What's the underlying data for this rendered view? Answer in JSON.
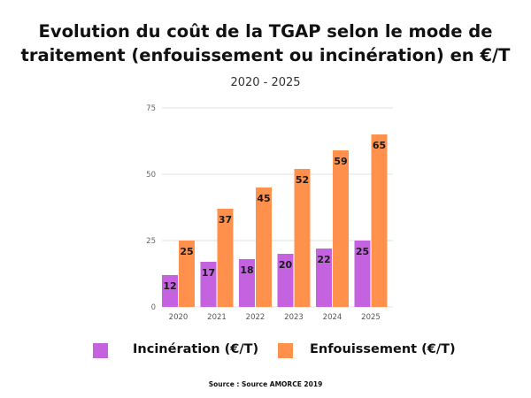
{
  "chart_data": {
    "type": "bar",
    "title": "Evolution du coût de la TGAP selon le mode de traitement (enfouissement ou incinération) en €/T",
    "subtitle": "2020 - 2025",
    "categories": [
      "2020",
      "2021",
      "2022",
      "2023",
      "2024",
      "2025"
    ],
    "series": [
      {
        "name": "Incinération (€/T)",
        "color": "#C462E0",
        "values": [
          12,
          17,
          18,
          20,
          22,
          25
        ]
      },
      {
        "name": "Enfouissement (€/T)",
        "color": "#FF914D",
        "values": [
          25,
          37,
          45,
          52,
          59,
          65
        ]
      }
    ],
    "ylim": [
      0,
      75
    ],
    "yticks": [
      "0",
      "25",
      "50",
      "75"
    ],
    "grid": true,
    "legend": "bottom",
    "source": "Source : Source AMORCE 2019"
  }
}
